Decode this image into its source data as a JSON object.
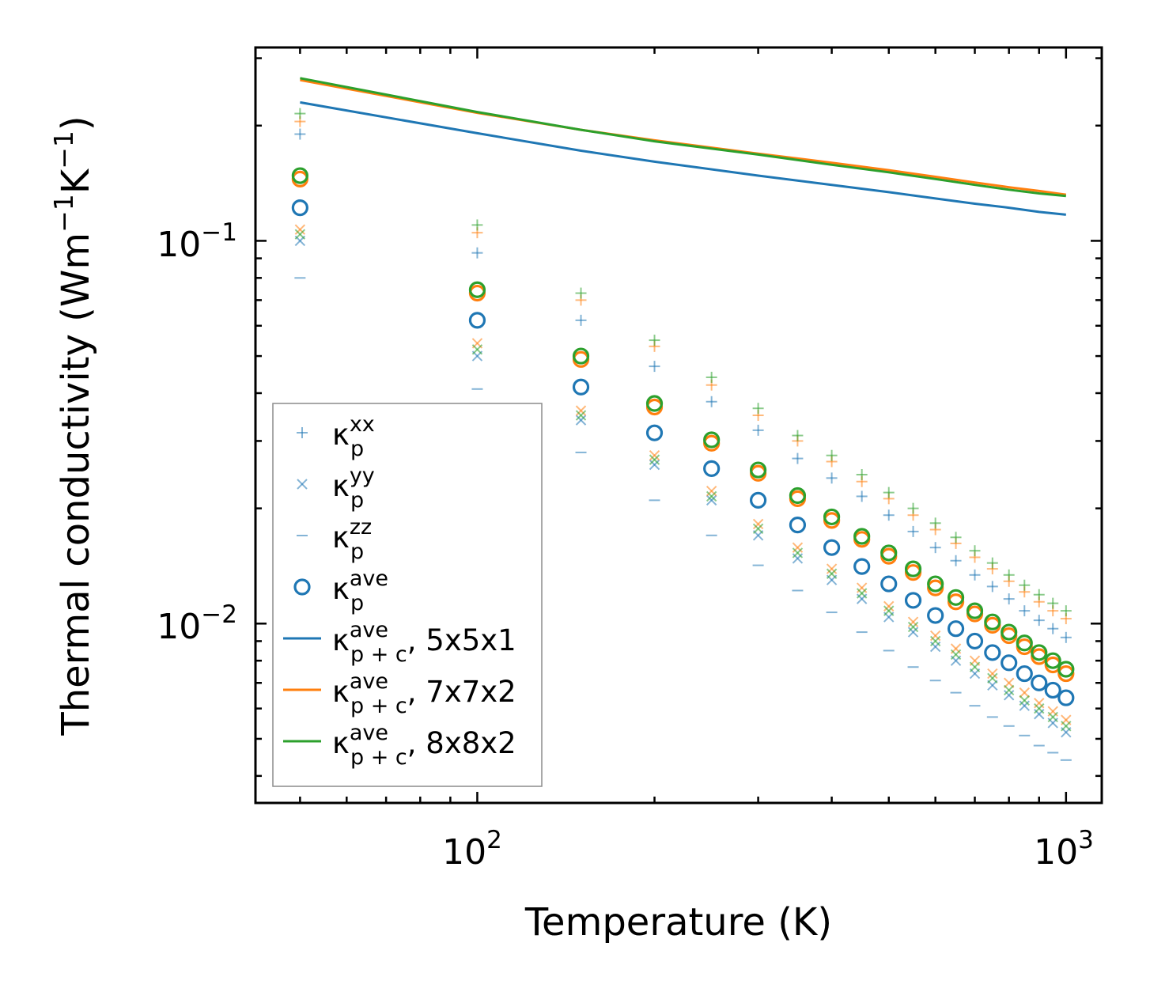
{
  "chart_data": {
    "type": "scatter",
    "title": "",
    "xlabel": "Temperature (K)",
    "ylabel": "Thermal conductivity (Wm",
    "ylabel_unit_exp1": "−1",
    "ylabel_unit_mid": "K",
    "ylabel_unit_exp2": "−1",
    "ylabel_close": ")",
    "xscale": "log",
    "yscale": "log",
    "xlim": [
      42,
      1150
    ],
    "ylim": [
      0.0034,
      0.32
    ],
    "xticks": [
      {
        "base": "10",
        "exp": "2",
        "value": 100
      },
      {
        "base": "10",
        "exp": "3",
        "value": 1000
      }
    ],
    "yticks": [
      {
        "base": "10",
        "exp": "−2",
        "value": 0.01
      },
      {
        "base": "10",
        "exp": "−1",
        "value": 0.1
      }
    ],
    "x": [
      50,
      100,
      150,
      200,
      250,
      300,
      350,
      400,
      450,
      500,
      550,
      600,
      650,
      700,
      750,
      800,
      850,
      900,
      950,
      1000
    ],
    "colors": {
      "5x5x1": "#1f77b4",
      "7x7x2": "#ff7f0e",
      "8x8x2": "#2ca02c"
    },
    "series": [
      {
        "name": "kappa_p_xx 5x5x1",
        "kind": "plus",
        "color": "#1f77b4",
        "values": [
          0.19,
          0.093,
          0.062,
          0.047,
          0.038,
          0.032,
          0.027,
          0.024,
          0.0215,
          0.0192,
          0.0174,
          0.0158,
          0.0146,
          0.0134,
          0.0125,
          0.0116,
          0.0108,
          0.0102,
          0.0097,
          0.0092
        ]
      },
      {
        "name": "kappa_p_xx 7x7x2",
        "kind": "plus",
        "color": "#ff7f0e",
        "values": [
          0.205,
          0.105,
          0.07,
          0.053,
          0.042,
          0.035,
          0.03,
          0.0265,
          0.0235,
          0.0212,
          0.0192,
          0.0176,
          0.0162,
          0.0149,
          0.0139,
          0.0129,
          0.0121,
          0.0114,
          0.0108,
          0.0103
        ]
      },
      {
        "name": "kappa_p_xx 8x8x2",
        "kind": "plus",
        "color": "#2ca02c",
        "values": [
          0.215,
          0.11,
          0.073,
          0.055,
          0.044,
          0.0365,
          0.031,
          0.0275,
          0.0245,
          0.022,
          0.02,
          0.0183,
          0.0168,
          0.0155,
          0.0144,
          0.0134,
          0.0126,
          0.0119,
          0.0113,
          0.0108
        ]
      },
      {
        "name": "kappa_p_yy 5x5x1",
        "kind": "cross",
        "color": "#1f77b4",
        "values": [
          0.1,
          0.05,
          0.034,
          0.026,
          0.021,
          0.017,
          0.0148,
          0.013,
          0.0116,
          0.0104,
          0.0095,
          0.0087,
          0.008,
          0.0074,
          0.0069,
          0.0065,
          0.0061,
          0.0058,
          0.0055,
          0.0052
        ]
      },
      {
        "name": "kappa_p_yy 7x7x2",
        "kind": "cross",
        "color": "#ff7f0e",
        "values": [
          0.107,
          0.054,
          0.036,
          0.0275,
          0.0222,
          0.0182,
          0.0158,
          0.0139,
          0.0124,
          0.0111,
          0.0101,
          0.0093,
          0.0086,
          0.008,
          0.0074,
          0.007,
          0.0066,
          0.0062,
          0.0059,
          0.0056
        ]
      },
      {
        "name": "kappa_p_yy 8x8x2",
        "kind": "cross",
        "color": "#2ca02c",
        "values": [
          0.104,
          0.052,
          0.035,
          0.0268,
          0.0215,
          0.0177,
          0.0153,
          0.0135,
          0.012,
          0.0108,
          0.0098,
          0.009,
          0.0083,
          0.0077,
          0.0072,
          0.0067,
          0.0063,
          0.006,
          0.0057,
          0.0054
        ]
      },
      {
        "name": "kappa_p_zz 5x5x1",
        "kind": "dash",
        "color": "#1f77b4",
        "values": [
          0.08,
          0.041,
          0.028,
          0.021,
          0.017,
          0.0142,
          0.0122,
          0.0107,
          0.0095,
          0.0085,
          0.0077,
          0.0071,
          0.0066,
          0.0061,
          0.0057,
          0.0054,
          0.0051,
          0.0048,
          0.0046,
          0.0044
        ]
      },
      {
        "name": "kappa_p_ave 5x5x1",
        "kind": "circle",
        "color": "#1f77b4",
        "values": [
          0.122,
          0.062,
          0.0415,
          0.0315,
          0.0254,
          0.021,
          0.0181,
          0.0158,
          0.0141,
          0.0127,
          0.0115,
          0.0105,
          0.0097,
          0.009,
          0.0084,
          0.0079,
          0.0074,
          0.007,
          0.0067,
          0.0064
        ]
      },
      {
        "name": "kappa_p_ave 7x7x2",
        "kind": "circle",
        "color": "#ff7f0e",
        "values": [
          0.145,
          0.073,
          0.049,
          0.0368,
          0.0296,
          0.0247,
          0.0212,
          0.0186,
          0.0166,
          0.015,
          0.0136,
          0.0124,
          0.0114,
          0.0106,
          0.0099,
          0.0093,
          0.0087,
          0.0082,
          0.0078,
          0.0074
        ]
      },
      {
        "name": "kappa_p_ave 8x8x2",
        "kind": "circle",
        "color": "#2ca02c",
        "values": [
          0.148,
          0.0745,
          0.05,
          0.0376,
          0.0302,
          0.0252,
          0.0216,
          0.019,
          0.0169,
          0.0153,
          0.0139,
          0.0127,
          0.0117,
          0.0108,
          0.0101,
          0.0095,
          0.0089,
          0.0084,
          0.008,
          0.0076
        ]
      },
      {
        "name": "kappa_p+c_ave 5x5x1",
        "kind": "line",
        "color": "#1f77b4",
        "x": [
          50,
          100,
          150,
          200,
          300,
          400,
          500,
          600,
          700,
          800,
          900,
          1000
        ],
        "values": [
          0.23,
          0.191,
          0.172,
          0.161,
          0.148,
          0.14,
          0.134,
          0.129,
          0.125,
          0.122,
          0.119,
          0.117
        ]
      },
      {
        "name": "kappa_p+c_ave 7x7x2",
        "kind": "line",
        "color": "#ff7f0e",
        "x": [
          50,
          100,
          150,
          200,
          300,
          400,
          500,
          600,
          700,
          800,
          900,
          1000
        ],
        "values": [
          0.263,
          0.216,
          0.195,
          0.183,
          0.169,
          0.16,
          0.153,
          0.147,
          0.142,
          0.138,
          0.135,
          0.132
        ]
      },
      {
        "name": "kappa_p+c_ave 8x8x2",
        "kind": "line",
        "color": "#2ca02c",
        "x": [
          50,
          100,
          150,
          200,
          300,
          400,
          500,
          600,
          700,
          800,
          900,
          1000
        ],
        "values": [
          0.266,
          0.217,
          0.195,
          0.182,
          0.168,
          0.158,
          0.151,
          0.145,
          0.14,
          0.136,
          0.133,
          0.131
        ]
      }
    ],
    "legend": {
      "position": "lower-left",
      "entries": [
        {
          "kind": "plus",
          "color": "#1f77b4",
          "symbol": "κ",
          "sub": "p",
          "sup": "xx",
          "suffix": ""
        },
        {
          "kind": "cross",
          "color": "#1f77b4",
          "symbol": "κ",
          "sub": "p",
          "sup": "yy",
          "suffix": ""
        },
        {
          "kind": "dash",
          "color": "#1f77b4",
          "symbol": "κ",
          "sub": "p",
          "sup": "zz",
          "suffix": ""
        },
        {
          "kind": "circle",
          "color": "#1f77b4",
          "symbol": "κ",
          "sub": "p",
          "sup": "ave",
          "suffix": ""
        },
        {
          "kind": "line",
          "color": "#1f77b4",
          "symbol": "κ",
          "sub": "p + c",
          "sup": "ave",
          "suffix": ", 5x5x1"
        },
        {
          "kind": "line",
          "color": "#ff7f0e",
          "symbol": "κ",
          "sub": "p + c",
          "sup": "ave",
          "suffix": ", 7x7x2"
        },
        {
          "kind": "line",
          "color": "#2ca02c",
          "symbol": "κ",
          "sub": "p + c",
          "sup": "ave",
          "suffix": ", 8x8x2"
        }
      ]
    }
  }
}
